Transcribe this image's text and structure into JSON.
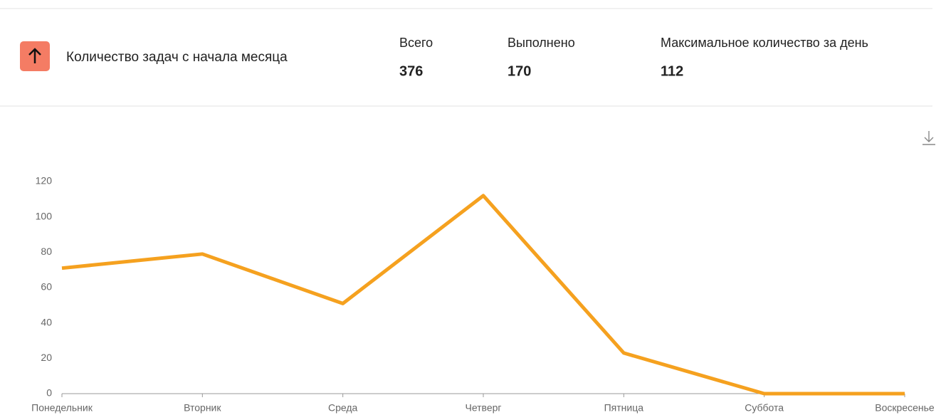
{
  "header": {
    "title": "Количество задач с начала месяца",
    "stats": [
      {
        "label": "Всего",
        "value": 376
      },
      {
        "label": "Выполнено",
        "value": 170
      },
      {
        "label": "Максимальное количество за день",
        "value": 112
      }
    ]
  },
  "chart_data": {
    "type": "line",
    "categories": [
      "Понедельник",
      "Вторник",
      "Среда",
      "Четверг",
      "Пятница",
      "Суббота",
      "Воскресенье"
    ],
    "values": [
      71,
      79,
      51,
      112,
      23,
      0,
      0
    ],
    "color": "#f5a11f",
    "ylim": [
      0,
      120
    ],
    "yticks": [
      0,
      20,
      40,
      60,
      80,
      100,
      120
    ],
    "grid": false
  }
}
